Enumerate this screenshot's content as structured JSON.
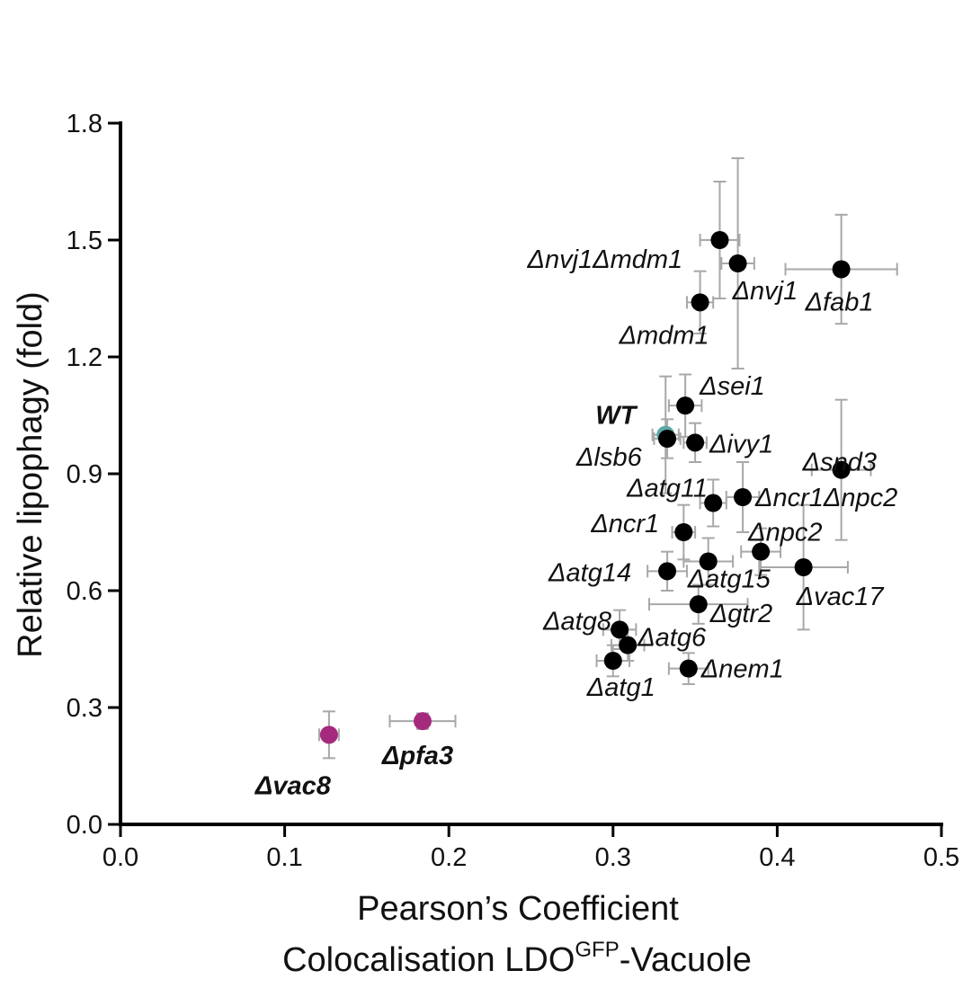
{
  "chart_data": {
    "type": "scatter",
    "title": "",
    "xlabel": {
      "line1": "Pearson’s Coefficient",
      "line2_prefix": "Colocalisation LDO",
      "line2_sup": "GFP",
      "line2_suffix": "-Vacuole"
    },
    "ylabel": "Relative lipophagy (fold)",
    "xlim": [
      0.0,
      0.5
    ],
    "ylim": [
      0.0,
      1.8
    ],
    "x_ticks": [
      "0.0",
      "0.1",
      "0.2",
      "0.3",
      "0.4",
      "0.5"
    ],
    "y_ticks": [
      "0.0",
      "0.3",
      "0.6",
      "0.9",
      "1.2",
      "1.5",
      "1.8"
    ],
    "grid": false,
    "colors": {
      "default": "#000000",
      "wt": "#5ba8a8",
      "highlight": "#a52a7d",
      "error_bar": "#a8a8a8"
    },
    "points": [
      {
        "label": "Δnvj1Δmdm1",
        "x": 0.365,
        "y": 1.5,
        "xerr": 0.012,
        "yerr": 0.15,
        "group": "default"
      },
      {
        "label": "Δnvj1",
        "x": 0.376,
        "y": 1.44,
        "xerr": 0.01,
        "yerr": 0.27,
        "group": "default"
      },
      {
        "label": "Δfab1",
        "x": 0.439,
        "y": 1.425,
        "xerr": 0.034,
        "yerr": 0.14,
        "group": "default"
      },
      {
        "label": "Δmdm1",
        "x": 0.353,
        "y": 1.34,
        "xerr": 0.008,
        "yerr": 0.08,
        "group": "default"
      },
      {
        "label": "Δsei1",
        "x": 0.344,
        "y": 1.075,
        "xerr": 0.01,
        "yerr": 0.08,
        "group": "default"
      },
      {
        "label": "WT",
        "x": 0.332,
        "y": 1.0,
        "xerr": 0.008,
        "yerr": 0.15,
        "group": "wt"
      },
      {
        "label": "Δlsb6",
        "x": 0.333,
        "y": 0.99,
        "xerr": 0.008,
        "yerr": 0.05,
        "group": "default"
      },
      {
        "label": "Δivy1",
        "x": 0.35,
        "y": 0.98,
        "xerr": 0.007,
        "yerr": 0.05,
        "group": "default"
      },
      {
        "label": "Δsnd3",
        "x": 0.439,
        "y": 0.91,
        "xerr": 0.018,
        "yerr": 0.18,
        "group": "default"
      },
      {
        "label": "Δncr1Δnpc2",
        "x": 0.379,
        "y": 0.84,
        "xerr": 0.01,
        "yerr": 0.09,
        "group": "default"
      },
      {
        "label": "Δatg11",
        "x": 0.361,
        "y": 0.825,
        "xerr": 0.008,
        "yerr": 0.06,
        "group": "default"
      },
      {
        "label": "Δncr1",
        "x": 0.343,
        "y": 0.75,
        "xerr": 0.007,
        "yerr": 0.07,
        "group": "default"
      },
      {
        "label": "Δnpc2",
        "x": 0.39,
        "y": 0.7,
        "xerr": 0.012,
        "yerr": 0.06,
        "group": "default"
      },
      {
        "label": "Δatg15",
        "x": 0.358,
        "y": 0.675,
        "xerr": 0.015,
        "yerr": 0.06,
        "group": "default"
      },
      {
        "label": "Δvac17",
        "x": 0.416,
        "y": 0.66,
        "xerr": 0.027,
        "yerr": 0.16,
        "group": "default"
      },
      {
        "label": "Δatg14",
        "x": 0.333,
        "y": 0.65,
        "xerr": 0.012,
        "yerr": 0.05,
        "group": "default"
      },
      {
        "label": "Δgtr2",
        "x": 0.352,
        "y": 0.565,
        "xerr": 0.03,
        "yerr": 0.05,
        "group": "default"
      },
      {
        "label": "Δatg8",
        "x": 0.304,
        "y": 0.5,
        "xerr": 0.01,
        "yerr": 0.05,
        "group": "default"
      },
      {
        "label": "Δatg6",
        "x": 0.309,
        "y": 0.46,
        "xerr": 0.01,
        "yerr": 0.04,
        "group": "default"
      },
      {
        "label": "Δatg1",
        "x": 0.3,
        "y": 0.42,
        "xerr": 0.01,
        "yerr": 0.04,
        "group": "default"
      },
      {
        "label": "Δnem1",
        "x": 0.346,
        "y": 0.4,
        "xerr": 0.012,
        "yerr": 0.04,
        "group": "default"
      },
      {
        "label": "Δpfa3",
        "x": 0.184,
        "y": 0.265,
        "xerr": 0.02,
        "yerr": 0.02,
        "group": "highlight"
      },
      {
        "label": "Δvac8",
        "x": 0.127,
        "y": 0.23,
        "xerr": 0.006,
        "yerr": 0.06,
        "group": "highlight"
      }
    ]
  }
}
